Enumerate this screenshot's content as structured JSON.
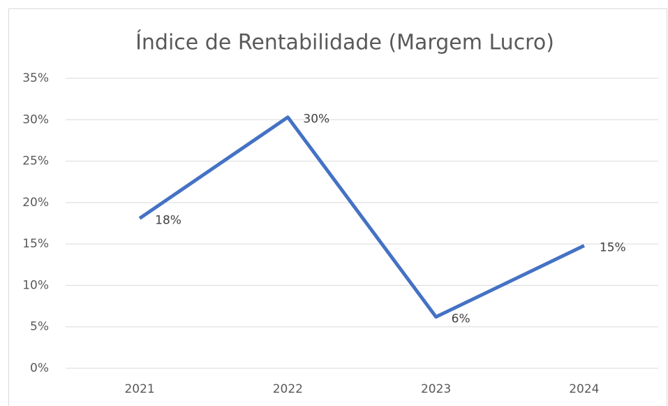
{
  "chart_data": {
    "type": "line",
    "title": "Índice de Rentabilidade (Margem Lucro)",
    "categories": [
      "2021",
      "2022",
      "2023",
      "2024"
    ],
    "series": [
      {
        "name": "Margem Lucro",
        "color": "#4472c4",
        "values": [
          18.1,
          30.3,
          6.2,
          14.8
        ],
        "value_labels": [
          "18%",
          "30%",
          "6%",
          "15%"
        ]
      }
    ],
    "ylim": [
      0,
      35
    ],
    "yticks": [
      {
        "value": 0,
        "label": "0%"
      },
      {
        "value": 5,
        "label": "5%"
      },
      {
        "value": 10,
        "label": "10%"
      },
      {
        "value": 15,
        "label": "15%"
      },
      {
        "value": 20,
        "label": "20%"
      },
      {
        "value": 25,
        "label": "25%"
      },
      {
        "value": 30,
        "label": "30%"
      },
      {
        "value": 35,
        "label": "35%"
      }
    ],
    "grid": true
  }
}
